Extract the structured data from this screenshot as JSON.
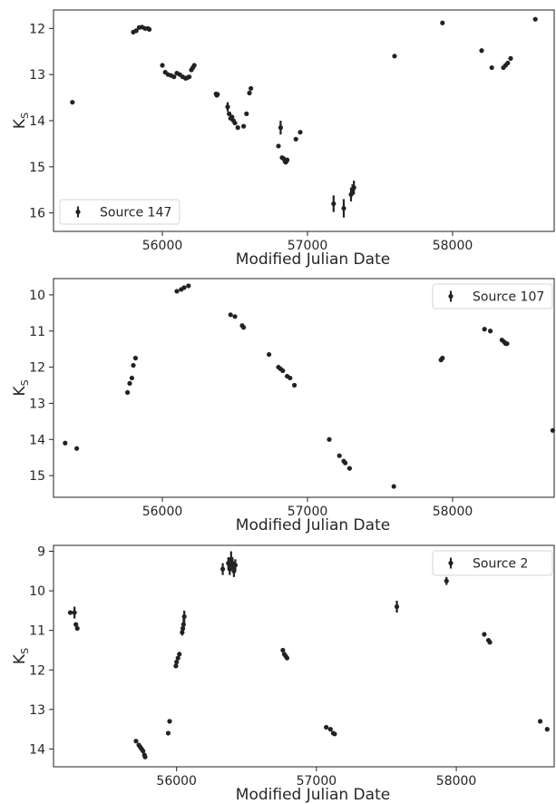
{
  "chart_data": [
    {
      "type": "scatter",
      "xlabel": "Modified Julian Date",
      "ylabel": "K",
      "ylabel_sub": "S",
      "xlim": [
        55250,
        58700
      ],
      "ylim": [
        16.4,
        11.6
      ],
      "y_inverted": true,
      "xticks": [
        56000,
        57000,
        58000
      ],
      "xtick_labels": [
        "56000",
        "57000",
        "58000"
      ],
      "yticks": [
        12,
        13,
        14,
        15,
        16
      ],
      "ytick_labels": [
        "12",
        "13",
        "14",
        "15",
        "16"
      ],
      "legend": {
        "placement": "lower-left",
        "entries": [
          "Source 147"
        ]
      },
      "series": [
        {
          "name": "Source 147",
          "color": "#222222",
          "marker": "o",
          "x": [
            55380,
            55800,
            55820,
            55840,
            55860,
            55880,
            55900,
            55910,
            56000,
            56020,
            56040,
            56060,
            56080,
            56100,
            56120,
            56140,
            56160,
            56170,
            56185,
            56200,
            56210,
            56220,
            56370,
            56375,
            56380,
            56450,
            56460,
            56470,
            56480,
            56490,
            56500,
            56520,
            56560,
            56580,
            56600,
            56610,
            56800,
            56815,
            56825,
            56835,
            56845,
            56850,
            56855,
            56860,
            56920,
            56950,
            57180,
            57250,
            57300,
            57310,
            57320,
            57600,
            57930,
            58200,
            58270,
            58350,
            58365,
            58380,
            58400,
            58570
          ],
          "y": [
            13.6,
            12.08,
            12.05,
            11.98,
            11.97,
            12.0,
            12.0,
            12.02,
            12.8,
            12.95,
            13.0,
            13.02,
            13.05,
            12.97,
            13.0,
            13.05,
            13.08,
            13.07,
            13.05,
            12.9,
            12.85,
            12.8,
            13.42,
            13.45,
            13.43,
            13.7,
            13.85,
            13.95,
            13.92,
            14.0,
            14.05,
            14.15,
            14.12,
            13.85,
            13.4,
            13.3,
            14.55,
            14.15,
            14.8,
            14.82,
            14.88,
            14.9,
            14.88,
            14.85,
            14.4,
            14.25,
            15.8,
            15.9,
            15.6,
            15.5,
            15.45,
            12.6,
            11.88,
            12.48,
            12.85,
            12.85,
            12.8,
            12.75,
            12.65,
            11.8
          ],
          "yerr": [
            0.03,
            0.03,
            0.03,
            0.03,
            0.03,
            0.03,
            0.03,
            0.03,
            0.03,
            0.03,
            0.03,
            0.03,
            0.03,
            0.03,
            0.03,
            0.03,
            0.03,
            0.03,
            0.03,
            0.03,
            0.03,
            0.03,
            0.03,
            0.03,
            0.03,
            0.1,
            0.04,
            0.04,
            0.04,
            0.04,
            0.04,
            0.04,
            0.04,
            0.04,
            0.04,
            0.04,
            0.04,
            0.15,
            0.04,
            0.05,
            0.05,
            0.05,
            0.05,
            0.05,
            0.04,
            0.04,
            0.18,
            0.2,
            0.15,
            0.12,
            0.15,
            0.03,
            0.03,
            0.03,
            0.03,
            0.04,
            0.04,
            0.04,
            0.04,
            0.03
          ]
        }
      ]
    },
    {
      "type": "scatter",
      "xlabel": "Modified Julian Date",
      "ylabel": "K",
      "ylabel_sub": "S",
      "xlim": [
        55250,
        58700
      ],
      "ylim": [
        15.6,
        9.55
      ],
      "y_inverted": true,
      "xticks": [
        56000,
        57000,
        58000
      ],
      "xtick_labels": [
        "56000",
        "57000",
        "58000"
      ],
      "yticks": [
        10,
        11,
        12,
        13,
        14,
        15
      ],
      "ytick_labels": [
        "10",
        "11",
        "12",
        "13",
        "14",
        "15"
      ],
      "legend": {
        "placement": "upper-right",
        "entries": [
          "Source 107"
        ]
      },
      "series": [
        {
          "name": "Source 107",
          "color": "#222222",
          "marker": "o",
          "x": [
            55330,
            55410,
            55760,
            55775,
            55790,
            55800,
            55815,
            56100,
            56130,
            56150,
            56180,
            56470,
            56500,
            56550,
            56560,
            56735,
            56800,
            56815,
            56830,
            56860,
            56880,
            56910,
            57150,
            57220,
            57250,
            57260,
            57290,
            57595,
            57920,
            57930,
            58220,
            58260,
            58340,
            58355,
            58365,
            58375,
            58690
          ],
          "y": [
            14.1,
            14.25,
            12.7,
            12.45,
            12.3,
            11.95,
            11.75,
            9.9,
            9.85,
            9.8,
            9.75,
            10.55,
            10.6,
            10.85,
            10.9,
            11.65,
            12.0,
            12.05,
            12.1,
            12.25,
            12.3,
            12.5,
            14.0,
            14.45,
            14.6,
            14.65,
            14.8,
            15.3,
            11.8,
            11.75,
            10.95,
            11.0,
            11.25,
            11.3,
            11.35,
            11.35,
            13.75
          ]
        }
      ]
    },
    {
      "type": "scatter",
      "xlabel": "Modified Julian Date",
      "ylabel": "K",
      "ylabel_sub": "S",
      "xlim": [
        55120,
        58700
      ],
      "ylim": [
        14.45,
        8.85
      ],
      "y_inverted": true,
      "xticks": [
        56000,
        57000,
        58000
      ],
      "xtick_labels": [
        "56000",
        "57000",
        "58000"
      ],
      "yticks": [
        9,
        10,
        11,
        12,
        13,
        14
      ],
      "ytick_labels": [
        "9",
        "10",
        "11",
        "12",
        "13",
        "14"
      ],
      "legend": {
        "placement": "upper-right",
        "entries": [
          "Source 2"
        ]
      },
      "series": [
        {
          "name": "Source 2",
          "color": "#222222",
          "marker": "o",
          "x": [
            55240,
            55270,
            55280,
            55290,
            55710,
            55730,
            55740,
            55750,
            55760,
            55770,
            55775,
            55940,
            55950,
            55995,
            56000,
            56010,
            56020,
            56040,
            56045,
            56050,
            56055,
            56330,
            56370,
            56380,
            56390,
            56400,
            56410,
            56420,
            56760,
            56770,
            56780,
            56790,
            57070,
            57100,
            57120,
            57130,
            57575,
            57930,
            58200,
            58230,
            58240,
            58600,
            58650
          ],
          "y": [
            10.55,
            10.55,
            10.85,
            10.95,
            13.8,
            13.9,
            13.95,
            14.0,
            14.05,
            14.15,
            14.2,
            13.6,
            13.3,
            11.9,
            11.8,
            11.7,
            11.6,
            11.05,
            10.95,
            10.85,
            10.65,
            9.45,
            9.3,
            9.45,
            9.2,
            9.3,
            9.5,
            9.35,
            11.5,
            11.6,
            11.65,
            11.7,
            13.45,
            13.5,
            13.6,
            13.62,
            10.4,
            9.75,
            11.1,
            11.25,
            11.3,
            13.3,
            13.5
          ],
          "yerr": [
            0.03,
            0.15,
            0.05,
            0.05,
            0.03,
            0.03,
            0.03,
            0.03,
            0.03,
            0.03,
            0.03,
            0.03,
            0.03,
            0.03,
            0.03,
            0.03,
            0.03,
            0.08,
            0.08,
            0.15,
            0.15,
            0.15,
            0.15,
            0.15,
            0.2,
            0.15,
            0.15,
            0.15,
            0.03,
            0.03,
            0.03,
            0.03,
            0.03,
            0.03,
            0.03,
            0.03,
            0.15,
            0.1,
            0.03,
            0.03,
            0.03,
            0.03,
            0.03
          ]
        }
      ]
    }
  ]
}
